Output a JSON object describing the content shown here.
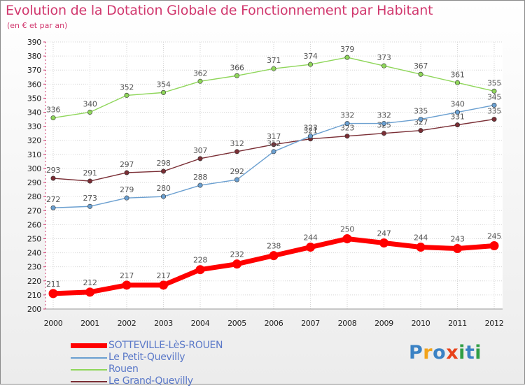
{
  "header": {
    "title": "Evolution de la Dotation Globale de Fonctionnement par Habitant",
    "subtitle": "(en € et par an)"
  },
  "logo": {
    "text": "Proxiti",
    "letters": [
      "P",
      "r",
      "o",
      "x",
      "i",
      "t",
      "i"
    ],
    "colors": [
      "#3b82c4",
      "#f2a31b",
      "#3b82c4",
      "#e8421a",
      "#2f9e44",
      "#3b82c4",
      "#2f9e44"
    ]
  },
  "chart_data": {
    "type": "line",
    "x": [
      "2000",
      "2001",
      "2002",
      "2003",
      "2004",
      "2005",
      "2006",
      "2007",
      "2008",
      "2009",
      "2010",
      "2011",
      "2012"
    ],
    "ylim": [
      200,
      390
    ],
    "yticks": [
      200,
      210,
      220,
      230,
      240,
      250,
      260,
      270,
      280,
      290,
      300,
      310,
      320,
      330,
      340,
      350,
      360,
      370,
      380,
      390
    ],
    "grid": true,
    "legend_position": "bottom-left",
    "series": [
      {
        "name": "SOTTEVILLE-LèS-ROUEN",
        "color": "#ff0000",
        "values": [
          211,
          212,
          217,
          217,
          228,
          232,
          238,
          244,
          250,
          247,
          244,
          243,
          245
        ]
      },
      {
        "name": "Le Petit-Quevilly",
        "color": "#6a9fd0",
        "values": [
          272,
          273,
          279,
          280,
          288,
          292,
          312,
          323,
          332,
          332,
          335,
          340,
          345
        ]
      },
      {
        "name": "Rouen",
        "color": "#8fd65a",
        "values": [
          336,
          340,
          352,
          354,
          362,
          366,
          371,
          374,
          379,
          373,
          367,
          361,
          355
        ]
      },
      {
        "name": "Le Grand-Quevilly",
        "color": "#7a2e35",
        "values": [
          293,
          291,
          297,
          298,
          307,
          312,
          317,
          321,
          323,
          325,
          327,
          331,
          335
        ]
      }
    ]
  }
}
